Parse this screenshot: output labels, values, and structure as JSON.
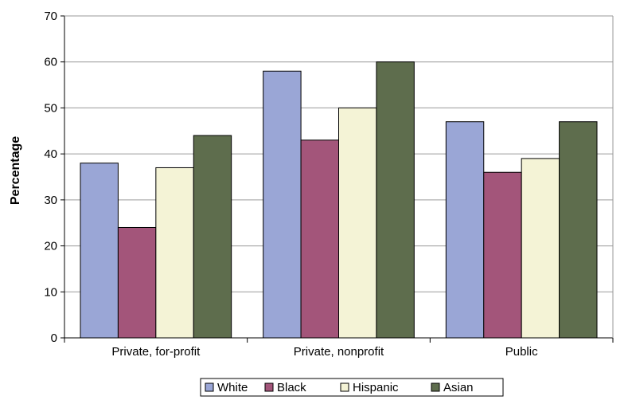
{
  "chart_data": {
    "type": "bar",
    "title": "",
    "xlabel": "",
    "ylabel": "Percentage",
    "categories": [
      "Private, for-profit",
      "Private, nonprofit",
      "Public"
    ],
    "series": [
      {
        "name": "White",
        "color": "#9aa6d6",
        "values": [
          38,
          58,
          47
        ]
      },
      {
        "name": "Black",
        "color": "#a3557a",
        "values": [
          24,
          43,
          36
        ]
      },
      {
        "name": "Hispanic",
        "color": "#f4f3d6",
        "values": [
          37,
          50,
          39
        ]
      },
      {
        "name": "Asian",
        "color": "#5e6d4d",
        "values": [
          44,
          60,
          47
        ]
      }
    ],
    "ylim": [
      0,
      70
    ],
    "yticks": [
      0,
      10,
      20,
      30,
      40,
      50,
      60,
      70
    ],
    "grid": true,
    "legend_position": "bottom"
  }
}
